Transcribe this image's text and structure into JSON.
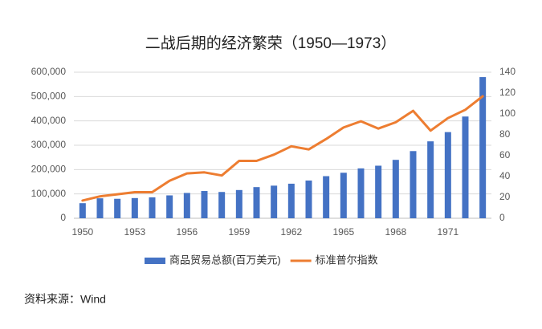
{
  "chart_data": {
    "type": "bar",
    "title": "二战后期的经济繁荣（1950—1973）",
    "categories": [
      "1950",
      null,
      null,
      "1953",
      null,
      null,
      "1956",
      null,
      null,
      "1959",
      null,
      null,
      "1962",
      null,
      null,
      "1965",
      null,
      null,
      "1968",
      null,
      null,
      "1971",
      null,
      null
    ],
    "series": [
      {
        "name": "商品贸易总额(百万美元)",
        "type": "bar",
        "color": "#4472c4",
        "values": [
          62000,
          82000,
          80000,
          83000,
          86000,
          94000,
          104000,
          112000,
          108000,
          116000,
          128000,
          134000,
          142000,
          155000,
          173000,
          187000,
          205000,
          216000,
          240000,
          276000,
          316000,
          354000,
          418000,
          580000
        ]
      },
      {
        "name": "标准普尔指数",
        "type": "line",
        "axis": "y2",
        "color": "#ed7d31",
        "values": [
          17,
          21,
          23,
          25,
          25,
          36,
          43,
          44,
          41,
          55,
          55,
          61,
          69,
          66,
          76,
          87,
          93,
          86,
          92,
          103,
          84,
          96,
          104,
          117
        ]
      }
    ],
    "ylim": [
      0,
      600000
    ],
    "yticks": [
      0,
      {
        "value": 100000,
        "label": "100,000"
      },
      {
        "value": 200000,
        "label": "200,000"
      },
      {
        "value": 300000,
        "label": "300,000"
      },
      {
        "value": 400000,
        "label": "400,000"
      },
      {
        "value": 500000,
        "label": "500,000"
      },
      {
        "value": 600000,
        "label": "600,000"
      }
    ],
    "y2lim": [
      0,
      140
    ],
    "y2ticks": [
      0,
      20,
      40,
      60,
      80,
      100,
      120,
      140
    ],
    "grid": true,
    "legend": "bottom",
    "source": "资料来源：Wind"
  }
}
